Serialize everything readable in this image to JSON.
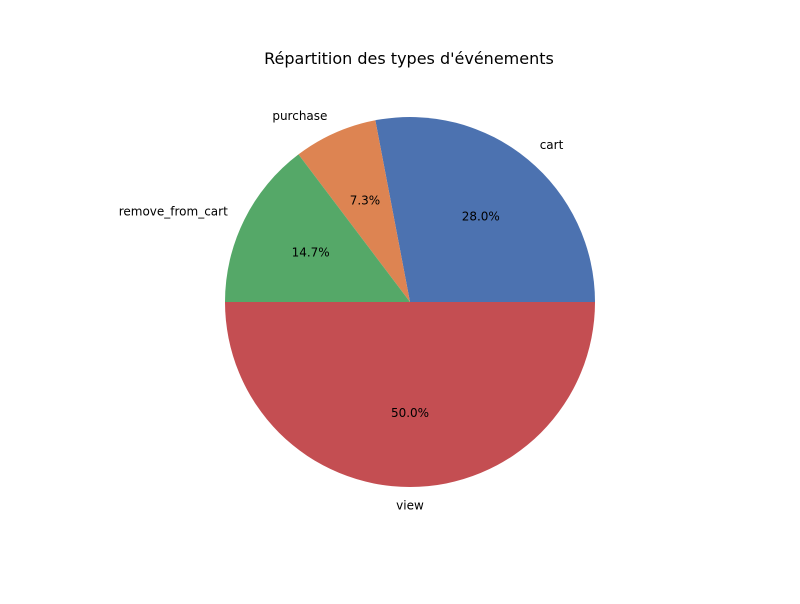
{
  "chart_data": {
    "type": "pie",
    "title": "Répartition des types d'événements",
    "slices": [
      {
        "label": "cart",
        "value": 28.0,
        "pct_label": "28.0%",
        "color": "#4c72b0"
      },
      {
        "label": "purchase",
        "value": 7.3,
        "pct_label": "7.3%",
        "color": "#dd8452"
      },
      {
        "label": "remove_from_cart",
        "value": 14.7,
        "pct_label": "14.7%",
        "color": "#55a868"
      },
      {
        "label": "view",
        "value": 50.0,
        "pct_label": "50.0%",
        "color": "#c44e52"
      }
    ],
    "start_angle": "0 degrees (3 o'clock)",
    "direction": "counterclockwise",
    "legend": "none"
  }
}
